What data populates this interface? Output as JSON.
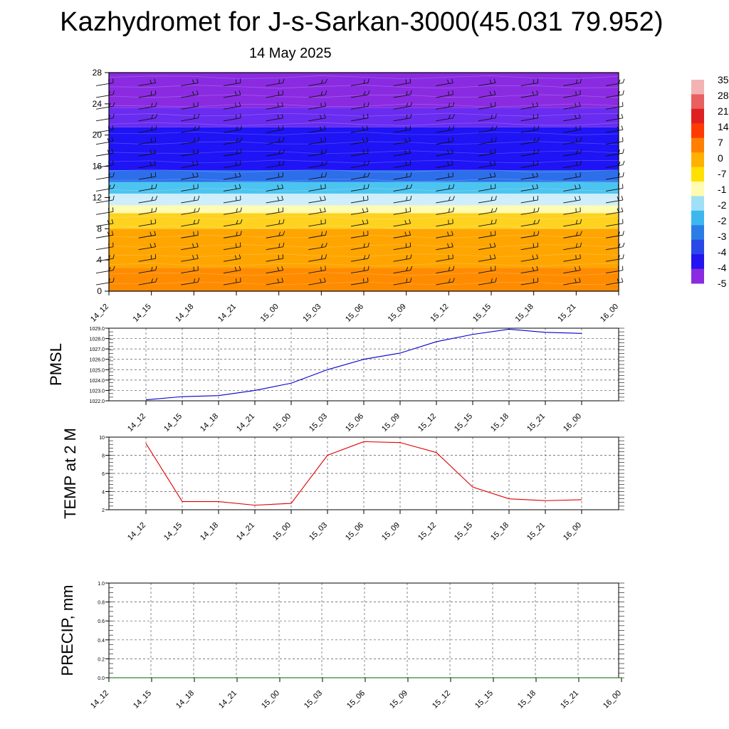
{
  "header": {
    "title": "Kazhydromet for J-s-Sarkan-3000(45.031 79.952)",
    "date": "14 May 2025"
  },
  "colors": {
    "pmsl_line": "#0000cc",
    "temp_line": "#e00000",
    "precip_line": "#006400",
    "grid": "#555555"
  },
  "chart_data": [
    {
      "type": "heatmap",
      "name": "vertical-profile",
      "x": [
        "14_12",
        "14_15",
        "14_18",
        "14_21",
        "15_00",
        "15_03",
        "15_06",
        "15_09",
        "15_12",
        "15_15",
        "15_18",
        "15_21",
        "16_00"
      ],
      "ylim": [
        0,
        28
      ],
      "yticks": [
        0,
        4,
        8,
        12,
        16,
        20,
        24,
        28
      ],
      "colorbar_labels": [
        "35",
        "28",
        "21",
        "14",
        "7",
        "0",
        "-7",
        "-1",
        "-2",
        "-2",
        "-3",
        "-4",
        "-4",
        "-5"
      ],
      "layers": [
        {
          "from": 0,
          "to": 3,
          "color": "#ff8c00"
        },
        {
          "from": 3,
          "to": 8,
          "color": "#ffa500"
        },
        {
          "from": 8,
          "to": 10,
          "color": "#ffd21f"
        },
        {
          "from": 10,
          "to": 11,
          "color": "#fffbb0"
        },
        {
          "from": 11,
          "to": 12.5,
          "color": "#cdeefa"
        },
        {
          "from": 12.5,
          "to": 14,
          "color": "#4cc4f0"
        },
        {
          "from": 14,
          "to": 15.5,
          "color": "#2d6fea"
        },
        {
          "from": 15.5,
          "to": 21,
          "color": "#1e14f5"
        },
        {
          "from": 21,
          "to": 23.5,
          "color": "#6a2cf0"
        },
        {
          "from": 23.5,
          "to": 28,
          "color": "#8a2be2"
        }
      ]
    },
    {
      "type": "line",
      "name": "pmsl",
      "ylabel": "PMSL",
      "x": [
        "14_12",
        "14_15",
        "14_18",
        "14_21",
        "15_00",
        "15_03",
        "15_06",
        "15_09",
        "15_12",
        "15_15",
        "15_18",
        "15_21",
        "16_00"
      ],
      "values": [
        1022.1,
        1022.4,
        1022.5,
        1023.0,
        1023.7,
        1025.0,
        1026.0,
        1026.6,
        1027.7,
        1028.4,
        1028.9,
        1028.6,
        1028.5
      ],
      "ylim": [
        1022.0,
        1029.0
      ],
      "yticks": [
        "1022.0",
        "1023.0",
        "1024.0",
        "1025.0",
        "1026.0",
        "1027.0",
        "1028.0",
        "1029.0"
      ]
    },
    {
      "type": "line",
      "name": "temp2m",
      "ylabel": "TEMP at 2 M",
      "x": [
        "14_12",
        "14_15",
        "14_18",
        "14_21",
        "15_00",
        "15_03",
        "15_06",
        "15_09",
        "15_12",
        "15_15",
        "15_18",
        "15_21",
        "16_00"
      ],
      "values": [
        9.3,
        2.9,
        2.9,
        2.5,
        2.7,
        8.0,
        9.5,
        9.4,
        8.3,
        4.5,
        3.2,
        3.0,
        3.1
      ],
      "ylim": [
        2,
        10
      ],
      "yticks": [
        "2",
        "4",
        "6",
        "8",
        "10"
      ]
    },
    {
      "type": "line",
      "name": "precip",
      "ylabel": "PRECIP, mm",
      "x": [
        "14_12",
        "14_15",
        "14_18",
        "14_21",
        "15_00",
        "15_03",
        "15_06",
        "15_09",
        "15_12",
        "15_15",
        "15_18",
        "15_21",
        "16_00"
      ],
      "values": [
        0,
        0,
        0,
        0,
        0,
        0,
        0,
        0,
        0,
        0,
        0,
        0,
        0
      ],
      "ylim": [
        0,
        1.0
      ],
      "yticks": [
        "0.0",
        "0.2",
        "0.4",
        "0.6",
        "0.8",
        "1.0"
      ]
    }
  ]
}
